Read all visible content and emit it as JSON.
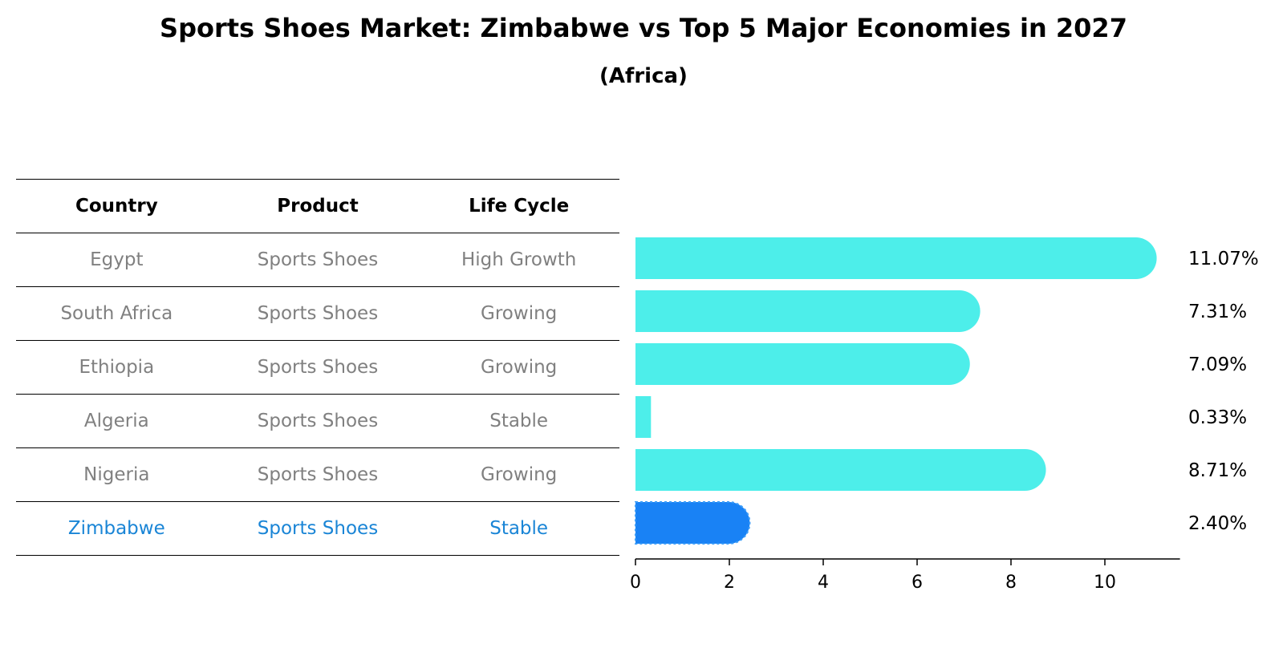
{
  "title": "Sports Shoes Market: Zimbabwe vs Top 5 Major Economies in 2027",
  "subtitle": "(Africa)",
  "table": {
    "headers": [
      "Country",
      "Product",
      "Life Cycle"
    ],
    "rows": [
      [
        "Egypt",
        "Sports Shoes",
        "High Growth"
      ],
      [
        "South Africa",
        "Sports Shoes",
        "Growing"
      ],
      [
        "Ethiopia",
        "Sports Shoes",
        "Growing"
      ],
      [
        "Algeria",
        "Sports Shoes",
        "Stable"
      ],
      [
        "Nigeria",
        "Sports Shoes",
        "Growing"
      ],
      [
        "Zimbabwe",
        "Sports Shoes",
        "Stable"
      ]
    ],
    "highlight_row": 5
  },
  "chart_data": {
    "type": "bar",
    "orientation": "horizontal",
    "categories": [
      "Egypt",
      "South Africa",
      "Ethiopia",
      "Algeria",
      "Nigeria",
      "Zimbabwe"
    ],
    "values": [
      11.07,
      7.31,
      7.09,
      0.33,
      8.71,
      2.4
    ],
    "value_labels": [
      "11.07%",
      "7.31%",
      "7.09%",
      "0.33%",
      "8.71%",
      "2.40%"
    ],
    "xlim": [
      0,
      11.6
    ],
    "xticks": [
      0,
      2,
      4,
      6,
      8,
      10
    ],
    "highlight_index": 5,
    "colors": {
      "default": "#4deeea",
      "highlight": "#1982f5"
    }
  }
}
